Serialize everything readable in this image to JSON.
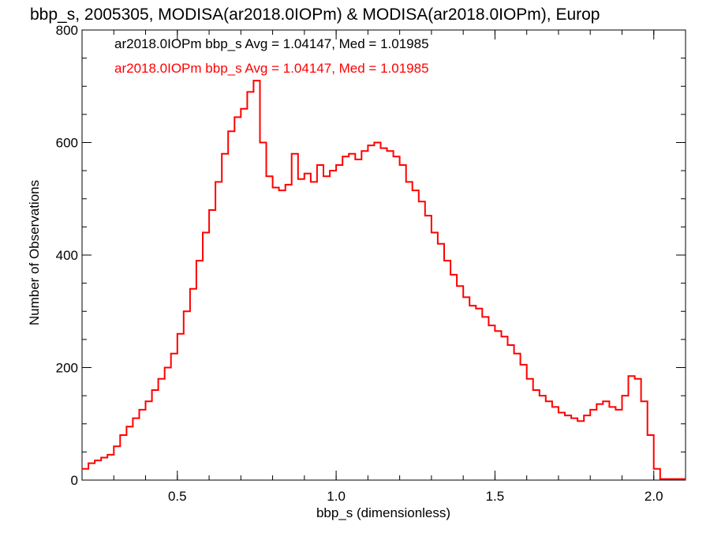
{
  "chart_data": {
    "type": "line",
    "title": "bbp_s, 2005305, MODISA(ar2018.0IOPm) & MODISA(ar2018.0IOPm), Europ",
    "xlabel": "bbp_s (dimensionless)",
    "ylabel": "Number of Observations",
    "xlim": [
      0.2,
      2.1
    ],
    "ylim": [
      0,
      800
    ],
    "x_ticks": [
      0.5,
      1.0,
      1.5,
      2.0
    ],
    "x_tick_labels": [
      "0.5",
      "1.0",
      "1.5",
      "2.0"
    ],
    "y_ticks": [
      0,
      200,
      400,
      600,
      800
    ],
    "y_tick_labels": [
      "0",
      "200",
      "400",
      "600",
      "800"
    ],
    "grid": false,
    "legend_position": "top-left",
    "legend": [
      {
        "text": "ar2018.0IOPm bbp_s Avg = 1.04147, Med = 1.01985",
        "color": "#000000"
      },
      {
        "text": "ar2018.0IOPm bbp_s Avg = 1.04147, Med = 1.01985",
        "color": "#ff0000"
      }
    ],
    "series": [
      {
        "color": "#ff0000",
        "style": "step",
        "x": [
          0.2,
          0.22,
          0.24,
          0.26,
          0.28,
          0.3,
          0.32,
          0.34,
          0.36,
          0.38,
          0.4,
          0.42,
          0.44,
          0.46,
          0.48,
          0.5,
          0.52,
          0.54,
          0.56,
          0.58,
          0.6,
          0.62,
          0.64,
          0.66,
          0.68,
          0.7,
          0.72,
          0.74,
          0.76,
          0.78,
          0.8,
          0.82,
          0.84,
          0.86,
          0.88,
          0.9,
          0.92,
          0.94,
          0.96,
          0.98,
          1.0,
          1.02,
          1.04,
          1.06,
          1.08,
          1.1,
          1.12,
          1.14,
          1.16,
          1.18,
          1.2,
          1.22,
          1.24,
          1.26,
          1.28,
          1.3,
          1.32,
          1.34,
          1.36,
          1.38,
          1.4,
          1.42,
          1.44,
          1.46,
          1.48,
          1.5,
          1.52,
          1.54,
          1.56,
          1.58,
          1.6,
          1.62,
          1.64,
          1.66,
          1.68,
          1.7,
          1.72,
          1.74,
          1.76,
          1.78,
          1.8,
          1.82,
          1.84,
          1.86,
          1.88,
          1.9,
          1.92,
          1.94,
          1.96,
          1.98,
          2.0,
          2.02,
          2.04,
          2.06,
          2.08
        ],
        "y": [
          20,
          30,
          35,
          40,
          45,
          60,
          80,
          95,
          110,
          125,
          140,
          160,
          180,
          200,
          225,
          260,
          300,
          340,
          390,
          440,
          480,
          530,
          580,
          620,
          645,
          660,
          690,
          710,
          600,
          540,
          520,
          515,
          525,
          580,
          535,
          545,
          530,
          560,
          540,
          550,
          560,
          575,
          580,
          570,
          585,
          595,
          600,
          590,
          585,
          575,
          560,
          530,
          515,
          495,
          470,
          440,
          420,
          390,
          365,
          345,
          325,
          310,
          305,
          290,
          275,
          265,
          255,
          240,
          225,
          205,
          180,
          160,
          150,
          140,
          130,
          120,
          115,
          110,
          105,
          115,
          125,
          135,
          140,
          130,
          125,
          150,
          185,
          180,
          140,
          80,
          20,
          2,
          2,
          2,
          2
        ]
      }
    ]
  }
}
